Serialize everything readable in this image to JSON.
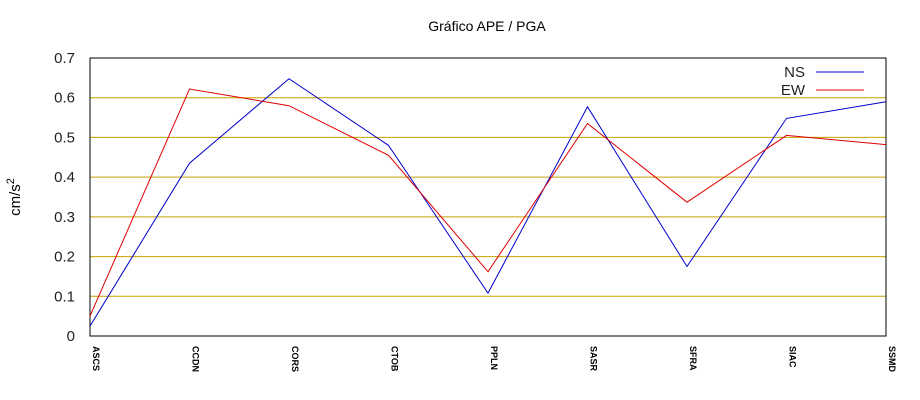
{
  "chart_data": {
    "type": "line",
    "title": "Gráfico  APE / PGA",
    "ylabel": "cm/s",
    "ylabel_superscript": "2",
    "xlabel": "",
    "categories": [
      "ASCS",
      "CCDN",
      "CORS",
      "CTOB",
      "PPLN",
      "SASR",
      "SFRA",
      "SIAC",
      "SSMD"
    ],
    "ylim": [
      0,
      0.7
    ],
    "yticks": [
      "0",
      "0.1",
      "0.2",
      "0.3",
      "0.4",
      "0.5",
      "0.6",
      "0.7"
    ],
    "grid": "horizontal",
    "legend_position": "top-right",
    "grid_color": "#c8a000",
    "series": [
      {
        "name": "NS",
        "color": "#0000cc",
        "values": [
          0.025,
          0.435,
          0.648,
          0.48,
          0.108,
          0.577,
          0.175,
          0.548,
          0.59
        ]
      },
      {
        "name": "EW",
        "color": "#dd0000",
        "values": [
          0.05,
          0.622,
          0.58,
          0.455,
          0.162,
          0.535,
          0.337,
          0.505,
          0.482
        ]
      }
    ]
  }
}
